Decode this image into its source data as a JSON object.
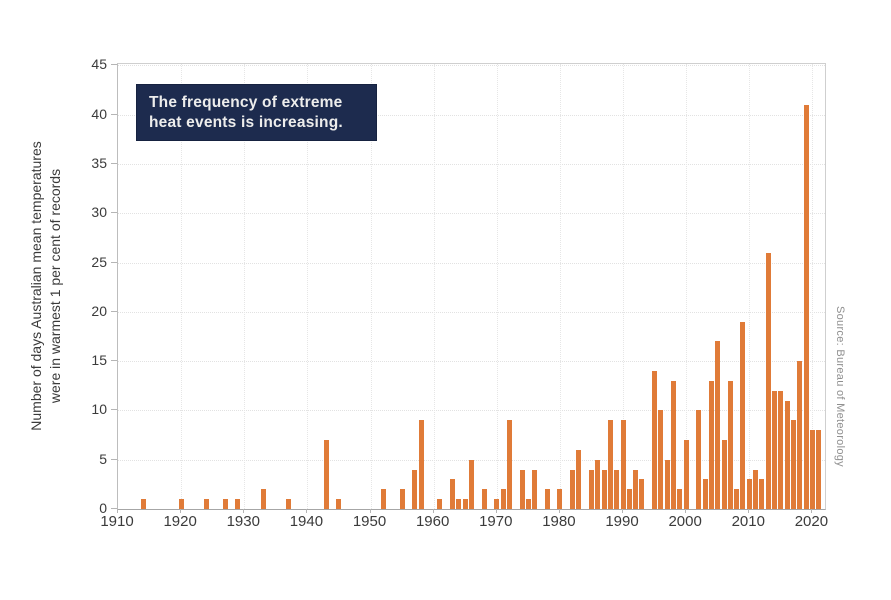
{
  "figure": {
    "ylabel_line1": "Number of days Australian mean temperatures",
    "ylabel_line2": "were in warmest 1 per cent of records",
    "annotation_line1": "The frequency of extreme",
    "annotation_line2": "heat events is increasing.",
    "source": "Source: Bureau of Meteorology",
    "annotation_bg": "#1d2b4e",
    "bar_color": "#e07b38"
  },
  "axes": {
    "y_ticks": [
      0,
      5,
      10,
      15,
      20,
      25,
      30,
      35,
      40,
      45
    ],
    "x_ticks": [
      1910,
      1920,
      1930,
      1940,
      1950,
      1960,
      1970,
      1980,
      1990,
      2000,
      2010,
      2020
    ],
    "x_gridline_years": [
      1920,
      1930,
      1940,
      1950,
      1960,
      1970,
      1980,
      1990,
      2000,
      2010,
      2020
    ]
  },
  "chart_data": {
    "type": "bar",
    "title": "",
    "annotation": "The frequency of extreme heat events is increasing.",
    "xlabel": "",
    "ylabel": "Number of days Australian mean temperatures were in warmest 1 per cent of records",
    "source": "Source: Bureau of Meteorology",
    "x_range": [
      1910,
      2022
    ],
    "ylim": [
      0,
      45
    ],
    "grid": "dotted both axes",
    "legend_position": "none",
    "bar_color": "#e07b38",
    "x": [
      1914,
      1920,
      1924,
      1927,
      1929,
      1933,
      1937,
      1943,
      1945,
      1952,
      1955,
      1957,
      1958,
      1961,
      1963,
      1964,
      1965,
      1966,
      1968,
      1970,
      1971,
      1972,
      1974,
      1975,
      1976,
      1978,
      1980,
      1982,
      1983,
      1985,
      1986,
      1987,
      1988,
      1989,
      1990,
      1991,
      1992,
      1993,
      1995,
      1996,
      1997,
      1998,
      1999,
      2000,
      2002,
      2003,
      2004,
      2005,
      2006,
      2007,
      2008,
      2009,
      2010,
      2011,
      2012,
      2013,
      2014,
      2015,
      2016,
      2017,
      2018,
      2019,
      2020,
      2021
    ],
    "values": [
      1,
      1,
      1,
      1,
      1,
      2,
      1,
      7,
      1,
      2,
      2,
      4,
      9,
      1,
      3,
      1,
      1,
      5,
      2,
      1,
      2,
      9,
      4,
      1,
      4,
      2,
      2,
      4,
      6,
      4,
      5,
      4,
      9,
      4,
      9,
      2,
      4,
      3,
      14,
      10,
      5,
      13,
      2,
      7,
      10,
      3,
      13,
      17,
      7,
      13,
      2,
      19,
      3,
      4,
      3,
      26,
      12,
      12,
      11,
      9,
      15,
      41,
      8,
      8
    ]
  }
}
